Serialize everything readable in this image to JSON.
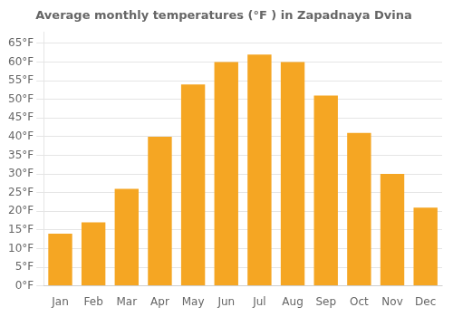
{
  "chart_data": {
    "type": "bar",
    "title": "Average monthly temperatures (°F ) in Zapadnaya Dvina",
    "categories": [
      "Jan",
      "Feb",
      "Mar",
      "Apr",
      "May",
      "Jun",
      "Jul",
      "Aug",
      "Sep",
      "Oct",
      "Nov",
      "Dec"
    ],
    "values": [
      14,
      17,
      26,
      40,
      54,
      60,
      62,
      60,
      51,
      41,
      30,
      21
    ],
    "color": "#F5A623",
    "ylim": [
      0,
      68
    ],
    "yticks": [
      {
        "value": 0,
        "label": "0°F"
      },
      {
        "value": 5,
        "label": "5°F"
      },
      {
        "value": 10,
        "label": "10°F"
      },
      {
        "value": 15,
        "label": "15°F"
      },
      {
        "value": 20,
        "label": "20°F"
      },
      {
        "value": 25,
        "label": "25°F"
      },
      {
        "value": 30,
        "label": "30°F"
      },
      {
        "value": 35,
        "label": "35°F"
      },
      {
        "value": 40,
        "label": "40°F"
      },
      {
        "value": 45,
        "label": "45°F"
      },
      {
        "value": 50,
        "label": "50°F"
      },
      {
        "value": 55,
        "label": "55°F"
      },
      {
        "value": 60,
        "label": "60°F"
      },
      {
        "value": 65,
        "label": "65°F"
      }
    ],
    "grid": true
  }
}
